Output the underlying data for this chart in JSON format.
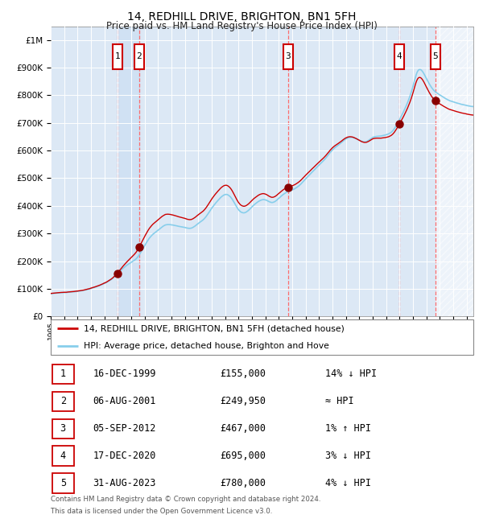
{
  "title": "14, REDHILL DRIVE, BRIGHTON, BN1 5FH",
  "subtitle": "Price paid vs. HM Land Registry's House Price Index (HPI)",
  "ylabel_ticks": [
    "£0",
    "£100K",
    "£200K",
    "£300K",
    "£400K",
    "£500K",
    "£600K",
    "£700K",
    "£800K",
    "£900K",
    "£1M"
  ],
  "ytick_values": [
    0,
    100000,
    200000,
    300000,
    400000,
    500000,
    600000,
    700000,
    800000,
    900000,
    1000000
  ],
  "ylim": [
    0,
    1050000
  ],
  "xlim_start": 1995.0,
  "xlim_end": 2026.5,
  "transactions": [
    {
      "num": 1,
      "date": "16-DEC-1999",
      "year": 1999.96,
      "price": 155000,
      "hpi_rel": "14% ↓ HPI"
    },
    {
      "num": 2,
      "date": "06-AUG-2001",
      "year": 2001.59,
      "price": 249950,
      "hpi_rel": "≈ HPI"
    },
    {
      "num": 3,
      "date": "05-SEP-2012",
      "year": 2012.68,
      "price": 467000,
      "hpi_rel": "1% ↑ HPI"
    },
    {
      "num": 4,
      "date": "17-DEC-2020",
      "year": 2020.96,
      "price": 695000,
      "hpi_rel": "3% ↓ HPI"
    },
    {
      "num": 5,
      "date": "31-AUG-2023",
      "year": 2023.66,
      "price": 780000,
      "hpi_rel": "4% ↓ HPI"
    }
  ],
  "legend_line1": "14, REDHILL DRIVE, BRIGHTON, BN1 5FH (detached house)",
  "legend_line2": "HPI: Average price, detached house, Brighton and Hove",
  "footnote1": "Contains HM Land Registry data © Crown copyright and database right 2024.",
  "footnote2": "This data is licensed under the Open Government Licence v3.0.",
  "hpi_color": "#87CEEB",
  "price_color": "#CC0000",
  "bg_color": "#dce8f5",
  "grid_color": "#ffffff",
  "dashed_color": "#FF6666",
  "hpi_anchors_x": [
    1995.0,
    1996.0,
    1997.0,
    1998.0,
    1999.0,
    1999.5,
    2000.0,
    2000.5,
    2001.0,
    2001.5,
    2002.0,
    2002.5,
    2003.0,
    2003.5,
    2004.0,
    2004.5,
    2005.0,
    2005.5,
    2006.0,
    2006.5,
    2007.0,
    2007.5,
    2008.0,
    2008.5,
    2009.0,
    2009.5,
    2010.0,
    2010.5,
    2011.0,
    2011.5,
    2012.0,
    2012.5,
    2013.0,
    2013.5,
    2014.0,
    2014.5,
    2015.0,
    2015.5,
    2016.0,
    2016.5,
    2017.0,
    2017.5,
    2018.0,
    2018.5,
    2019.0,
    2019.5,
    2020.0,
    2020.5,
    2021.0,
    2021.5,
    2022.0,
    2022.3,
    2022.6,
    2023.0,
    2023.5,
    2024.0,
    2024.5,
    2025.0,
    2025.5,
    2026.0,
    2026.5
  ],
  "hpi_anchors_y": [
    82000,
    86000,
    90000,
    100000,
    118000,
    132000,
    155000,
    178000,
    195000,
    215000,
    255000,
    290000,
    310000,
    328000,
    330000,
    325000,
    320000,
    318000,
    335000,
    355000,
    390000,
    420000,
    440000,
    425000,
    385000,
    375000,
    395000,
    415000,
    420000,
    410000,
    425000,
    445000,
    455000,
    470000,
    495000,
    520000,
    545000,
    570000,
    600000,
    620000,
    640000,
    645000,
    635000,
    630000,
    645000,
    650000,
    655000,
    670000,
    710000,
    760000,
    830000,
    880000,
    890000,
    860000,
    820000,
    800000,
    785000,
    775000,
    768000,
    762000,
    758000
  ]
}
